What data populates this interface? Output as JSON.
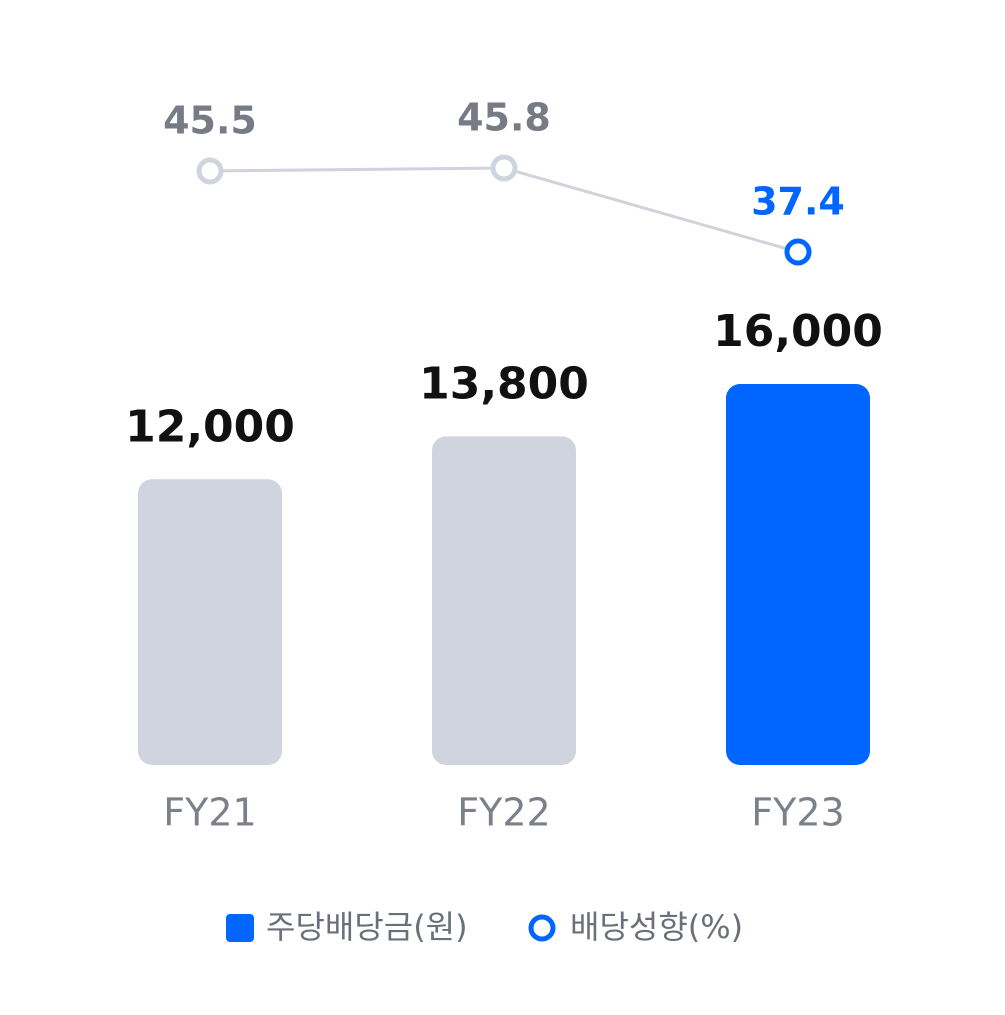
{
  "chart_data": {
    "type": "combo",
    "categories": [
      "FY21",
      "FY22",
      "FY23"
    ],
    "series": [
      {
        "name": "주당배당금(원)",
        "type": "bar",
        "color": "#0066ff",
        "colors": [
          "#cfd4de",
          "#cfd4de",
          "#0066ff"
        ],
        "values": [
          12000,
          13800,
          16000
        ],
        "value_labels": [
          "12,000",
          "13,800",
          "16,000"
        ]
      },
      {
        "name": "배당성향(%)",
        "type": "line",
        "color": "#0066ff",
        "line_color": "#d0d3dc",
        "colors": [
          "#cfd4de",
          "#cfd4de",
          "#0066ff"
        ],
        "label_colors": [
          "#777b85",
          "#777b85",
          "#0066ff"
        ],
        "values": [
          45.5,
          45.8,
          37.4
        ]
      }
    ]
  }
}
